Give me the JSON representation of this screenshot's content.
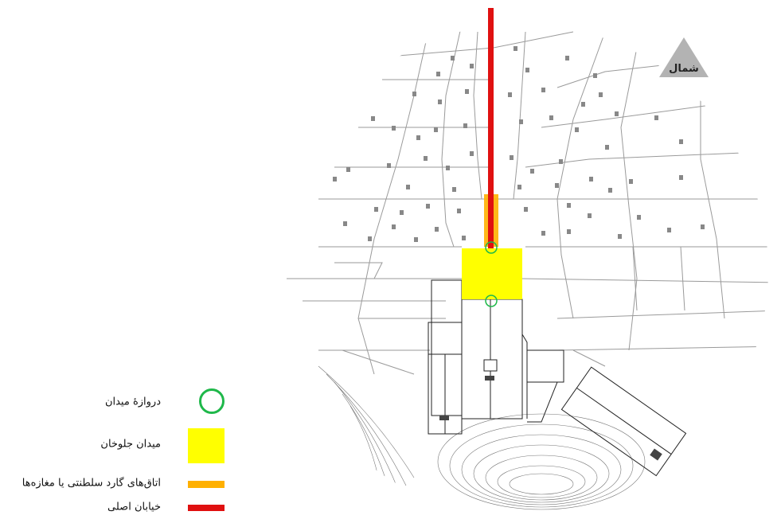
{
  "north_label": "شمال",
  "legend": [
    {
      "key": "gate",
      "label": "دروازهٔ میدان",
      "color": "#1fb84a",
      "symbol": "circle-icon"
    },
    {
      "key": "square",
      "label": "میدان جلوخان",
      "color": "#ffff00",
      "symbol": "square-swatch"
    },
    {
      "key": "rooms",
      "label": "اتاق‌های گارد سلطنتی یا مغازه‌ها",
      "color": "#ffb000",
      "symbol": "bar-swatch"
    },
    {
      "key": "street",
      "label": "خیابان اصلی",
      "color": "#e01010",
      "symbol": "bar-swatch"
    }
  ],
  "colors": {
    "street": "#e01010",
    "square": "#ffff00",
    "rooms": "#ffb000",
    "gate": "#1fb84a",
    "lines": "#999999",
    "buildings": "#333333"
  }
}
